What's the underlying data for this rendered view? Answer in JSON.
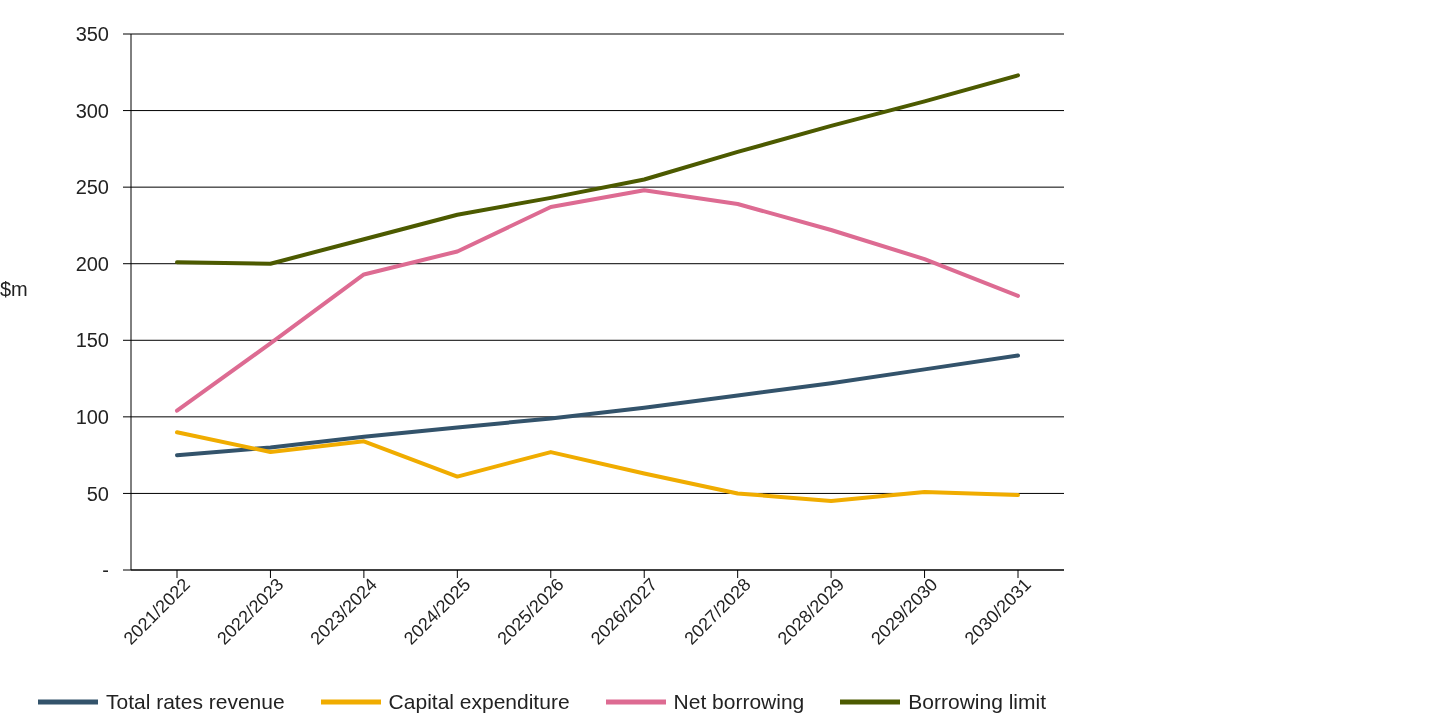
{
  "chart_data": {
    "type": "line",
    "ylabel": "$m",
    "categories": [
      "2021/2022",
      "2022/2023",
      "2023/2024",
      "2024/2025",
      "2025/2026",
      "2026/2027",
      "2027/2028",
      "2028/2029",
      "2029/2030",
      "2030/2031"
    ],
    "series": [
      {
        "name": "Total rates revenue",
        "color": "#33536b",
        "values": [
          75,
          80,
          87,
          93,
          99,
          106,
          114,
          122,
          131,
          140
        ]
      },
      {
        "name": "Capital expenditure",
        "color": "#f0ac00",
        "values": [
          90,
          77,
          84,
          61,
          77,
          63,
          50,
          45,
          51,
          49
        ]
      },
      {
        "name": "Net borrowing",
        "color": "#dd6b92",
        "values": [
          104,
          148,
          193,
          208,
          237,
          248,
          239,
          222,
          203,
          179
        ]
      },
      {
        "name": "Borrowing limit",
        "color": "#4c5a00",
        "values": [
          201,
          200,
          216,
          232,
          243,
          255,
          273,
          290,
          306,
          323
        ]
      }
    ],
    "ylim": [
      0,
      350
    ],
    "yticks": [
      {
        "value": 0,
        "label": "-"
      },
      50,
      100,
      150,
      200,
      250,
      300,
      350
    ],
    "grid": "y",
    "legend": "bottom",
    "marker": "none",
    "line_style": "solid"
  }
}
